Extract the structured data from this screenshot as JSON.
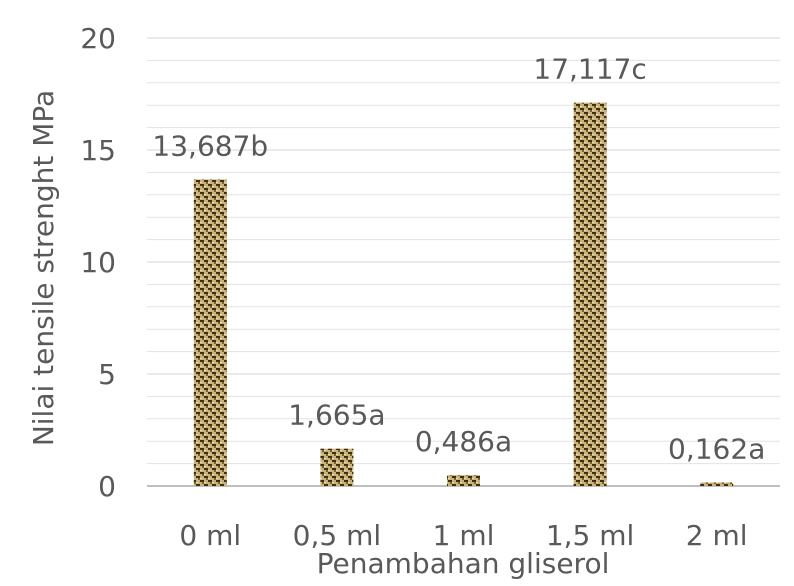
{
  "chart_data": {
    "type": "bar",
    "title": "",
    "xlabel": "Penambahan gliserol",
    "ylabel": "Nilai tensile strenght MPa",
    "categories": [
      "0 ml",
      "0,5 ml",
      "1 ml",
      "1,5 ml",
      "2 ml"
    ],
    "values": [
      13.687,
      1.665,
      0.486,
      17.117,
      0.162
    ],
    "data_labels": [
      "13,687b",
      "1,665a",
      "0,486a",
      "17,117c",
      "0,162a"
    ],
    "ylim": [
      0,
      20
    ],
    "yticks": [
      {
        "value": 0,
        "label": "0"
      },
      {
        "value": 5,
        "label": "5"
      },
      {
        "value": 10,
        "label": "10"
      },
      {
        "value": 15,
        "label": "15"
      },
      {
        "value": 20,
        "label": "20"
      }
    ],
    "minor_grid_step": 1,
    "grid": true,
    "legend": "none",
    "bar_fill": "woven texture, gold/brown",
    "colors": {
      "bar_light": "#c9b37a",
      "bar_dark": "#3b2e14",
      "grid": "#e3e3e3",
      "axis": "#bfbfbf",
      "text": "#595959"
    }
  }
}
